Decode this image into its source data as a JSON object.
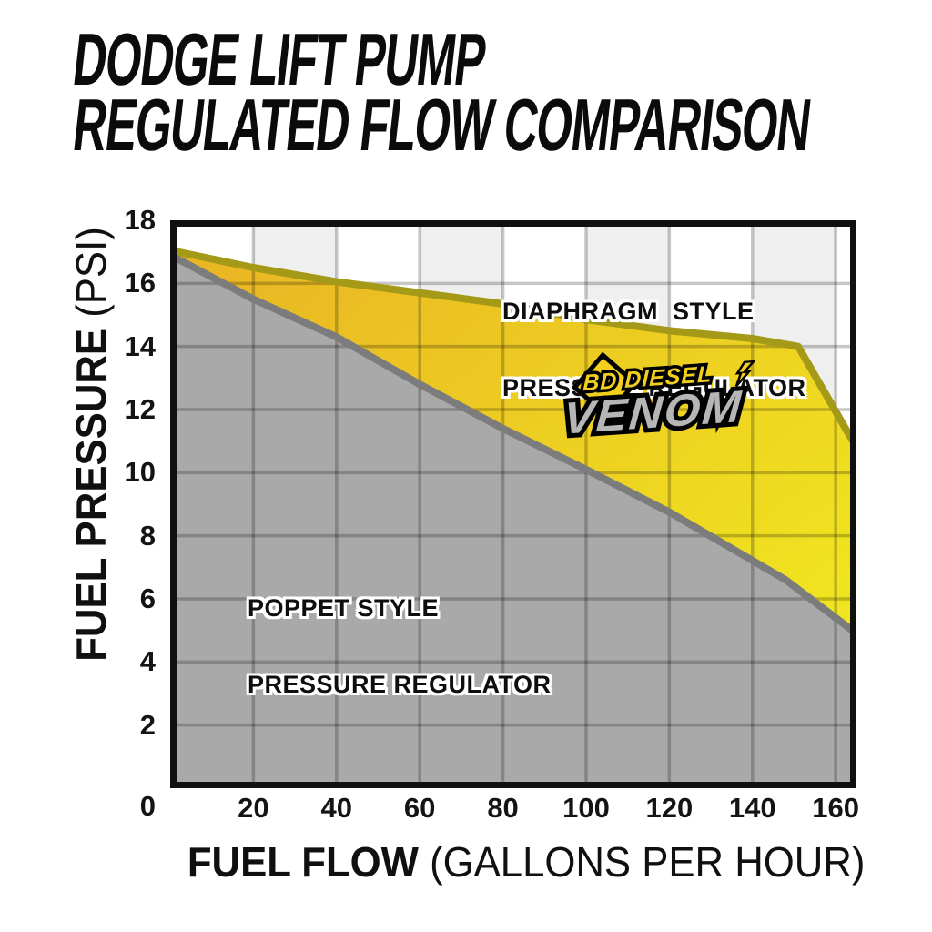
{
  "title": {
    "line1": "DODGE LIFT PUMP",
    "line2": "REGULATED FLOW COMPARISON"
  },
  "axes": {
    "x_title_bold": "FUEL FLOW",
    "x_title_rest": " (GALLONS PER HOUR)",
    "y_title_bold": "FUEL PRESSURE",
    "y_title_rest": " (PSI)"
  },
  "labels": {
    "diaphragm_line1": "DIAPHRAGM  STYLE",
    "diaphragm_line2": "PRESSURE REGULATOR",
    "poppet_line1": "POPPET STYLE",
    "poppet_line2": "PRESSURE REGULATOR"
  },
  "logo": {
    "brand": "BD DIESEL",
    "model": "VENOM"
  },
  "chart_data": {
    "type": "area",
    "title": "DODGE LIFT PUMP REGULATED FLOW COMPARISON",
    "xlabel": "FUEL FLOW (GALLONS PER HOUR)",
    "ylabel": "FUEL PRESSURE (PSI)",
    "xlim": [
      0,
      165
    ],
    "ylim": [
      0,
      18
    ],
    "x_ticks": [
      0,
      20,
      40,
      60,
      80,
      100,
      120,
      140,
      160
    ],
    "y_ticks": [
      0,
      2,
      4,
      6,
      8,
      10,
      12,
      14,
      16,
      18
    ],
    "grid": true,
    "grid_step_x": 20,
    "grid_step_y": 2,
    "legend_position": "labels-inside-areas",
    "stripe_bands": [
      [
        20,
        40
      ],
      [
        60,
        80
      ],
      [
        100,
        120
      ],
      [
        140,
        160
      ]
    ],
    "series": [
      {
        "name": "DIAPHRAGM STYLE PRESSURE REGULATOR",
        "points": [
          [
            0,
            17.05
          ],
          [
            20,
            16.5
          ],
          [
            40,
            16.05
          ],
          [
            60,
            15.7
          ],
          [
            80,
            15.35
          ],
          [
            100,
            14.85
          ],
          [
            120,
            14.5
          ],
          [
            140,
            14.25
          ],
          [
            151,
            14.0
          ],
          [
            165,
            10.8
          ]
        ],
        "line_color": "#a59a18",
        "fill_color_start": "#e9b424",
        "fill_color_end": "#f2ef1f"
      },
      {
        "name": "POPPET STYLE PRESSURE REGULATOR",
        "points": [
          [
            0,
            16.9
          ],
          [
            20,
            15.5
          ],
          [
            40,
            14.3
          ],
          [
            60,
            12.8
          ],
          [
            80,
            11.4
          ],
          [
            100,
            10.1
          ],
          [
            120,
            8.75
          ],
          [
            148,
            6.6
          ],
          [
            165,
            4.9
          ]
        ],
        "line_color": "#7c7c7c",
        "fill_color": "#a9a9a9"
      }
    ],
    "colors": {
      "background": "#ffffff",
      "stripe": "#efefef",
      "gridline": "rgba(0,0,0,0.22)",
      "frame": "#101010"
    }
  }
}
